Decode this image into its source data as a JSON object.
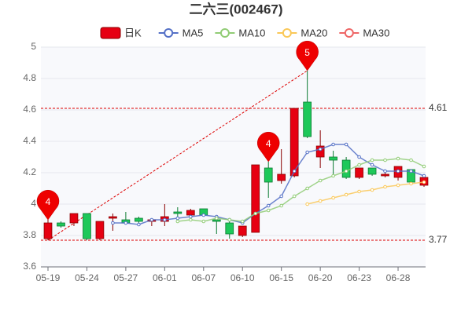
{
  "chart_data": {
    "type": "candlestick",
    "title": "二六三(002467)",
    "categories": [
      "05-19",
      null,
      null,
      "05-24",
      null,
      null,
      "05-27",
      null,
      null,
      "06-01",
      null,
      null,
      "06-07",
      null,
      null,
      "06-10",
      null,
      null,
      "06-15",
      null,
      null,
      "06-20",
      null,
      null,
      "06-23",
      null,
      null,
      "06-28",
      null,
      null
    ],
    "candles": {
      "name": "日K",
      "color_up": "#e60012",
      "color_down": "#1ec85a",
      "open": [
        3.78,
        3.88,
        3.88,
        3.94,
        3.78,
        3.91,
        3.9,
        3.91,
        3.89,
        3.89,
        3.95,
        3.93,
        3.97,
        3.9,
        3.88,
        3.8,
        3.82,
        4.23,
        4.15,
        4.18,
        4.65,
        4.3,
        4.3,
        4.28,
        4.17,
        4.23,
        4.18,
        4.17,
        4.22,
        4.12
      ],
      "close": [
        3.88,
        3.86,
        3.94,
        3.78,
        3.89,
        3.92,
        3.88,
        3.89,
        3.9,
        3.92,
        3.94,
        3.96,
        3.93,
        3.89,
        3.81,
        3.86,
        4.25,
        4.14,
        4.19,
        4.61,
        4.43,
        4.37,
        4.28,
        4.17,
        4.23,
        4.19,
        4.19,
        4.24,
        4.14,
        4.17
      ],
      "high": [
        3.9,
        3.89,
        3.94,
        3.94,
        3.89,
        3.94,
        3.95,
        3.92,
        3.91,
        4.0,
        3.98,
        3.97,
        3.97,
        3.93,
        3.89,
        3.86,
        4.25,
        4.27,
        4.35,
        4.61,
        4.85,
        4.47,
        4.34,
        4.3,
        4.23,
        4.23,
        4.2,
        4.24,
        4.22,
        4.18
      ],
      "low": [
        3.77,
        3.85,
        3.86,
        3.77,
        3.77,
        3.83,
        3.87,
        3.88,
        3.86,
        3.86,
        3.9,
        3.9,
        3.92,
        3.81,
        3.78,
        3.79,
        3.82,
        4.04,
        4.13,
        4.17,
        4.42,
        4.23,
        4.18,
        4.16,
        4.16,
        4.18,
        4.17,
        4.15,
        4.13,
        4.11
      ]
    },
    "series": [
      {
        "name": "MA5",
        "color": "#5470c6",
        "values": [
          null,
          null,
          null,
          null,
          null,
          3.88,
          3.88,
          3.87,
          3.9,
          3.9,
          3.91,
          3.92,
          3.93,
          3.92,
          3.9,
          3.88,
          3.94,
          3.99,
          4.05,
          4.21,
          4.33,
          4.35,
          4.38,
          4.38,
          4.3,
          4.25,
          4.21,
          4.21,
          4.21,
          4.18
        ]
      },
      {
        "name": "MA10",
        "color": "#91cc75",
        "values": [
          null,
          null,
          null,
          null,
          null,
          null,
          null,
          null,
          null,
          null,
          3.89,
          3.9,
          3.89,
          3.91,
          3.9,
          3.89,
          3.94,
          3.96,
          3.99,
          4.05,
          4.1,
          4.15,
          4.18,
          4.21,
          4.25,
          4.28,
          4.28,
          4.29,
          4.28,
          4.24
        ]
      },
      {
        "name": "MA20",
        "color": "#fac858",
        "values": [
          null,
          null,
          null,
          null,
          null,
          null,
          null,
          null,
          null,
          null,
          null,
          null,
          null,
          null,
          null,
          null,
          null,
          null,
          null,
          null,
          4.0,
          4.02,
          4.04,
          4.06,
          4.08,
          4.09,
          4.11,
          4.12,
          4.13,
          4.14
        ]
      },
      {
        "name": "MA30",
        "color": "#ee6666",
        "values": [
          null,
          null,
          null,
          null,
          null,
          null,
          null,
          null,
          null,
          null,
          null,
          null,
          null,
          null,
          null,
          null,
          null,
          null,
          null,
          null,
          null,
          null,
          null,
          null,
          null,
          null,
          null,
          null,
          null,
          null
        ]
      }
    ],
    "ylim": [
      3.6,
      5
    ],
    "yticks": [
      3.6,
      3.8,
      4,
      4.2,
      4.4,
      4.6,
      4.8,
      5
    ],
    "grid": true,
    "hlines": [
      4.61,
      3.77
    ],
    "markers": [
      {
        "index": 0,
        "label": "4"
      },
      {
        "index": 17,
        "label": "4"
      },
      {
        "index": 20,
        "label": "5"
      }
    ]
  }
}
